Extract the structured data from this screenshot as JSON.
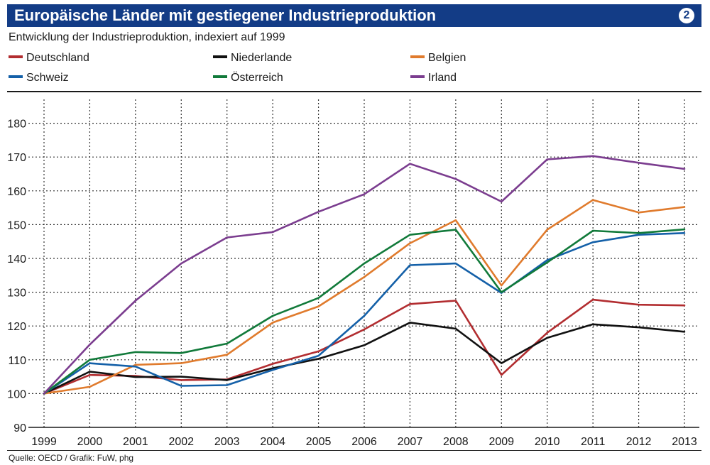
{
  "header": {
    "title": "Europäische Länder mit gestiegener Industrieproduktion",
    "badge": "2"
  },
  "footer": {
    "source": "Quelle: OECD / Grafik: FuW, phg"
  },
  "colors": {
    "title_bar": "#133c86",
    "grid": "#333333"
  },
  "chart_data": {
    "type": "line",
    "title": "Europäische Länder mit gestiegener Industrieproduktion",
    "subtitle": "Entwicklung der Industrieproduktion, indexiert auf 1999",
    "xlabel": "",
    "ylabel": "",
    "x": [
      "1999",
      "2000",
      "2001",
      "2002",
      "2003",
      "2004",
      "2005",
      "2006",
      "2007",
      "2008",
      "2009",
      "2010",
      "2011",
      "2012",
      "2013"
    ],
    "ylim": [
      90,
      180
    ],
    "yticks": [
      90,
      100,
      110,
      120,
      130,
      140,
      150,
      160,
      170,
      180
    ],
    "grid": true,
    "legend_position": "top",
    "series": [
      {
        "name": "Deutschland",
        "color": "#b22d30",
        "values": [
          100,
          105.5,
          105.2,
          104,
          104.2,
          108.8,
          112.5,
          119,
          126.5,
          127.5,
          105.5,
          118,
          127.8,
          126.3,
          126.1
        ]
      },
      {
        "name": "Niederlande",
        "color": "#111111",
        "values": [
          100,
          106.5,
          104.9,
          105,
          104,
          107.5,
          110.3,
          114.3,
          121,
          119.2,
          109,
          116.5,
          120.5,
          119.6,
          118.3
        ]
      },
      {
        "name": "Belgien",
        "color": "#e07b2d",
        "values": [
          100,
          102,
          108.5,
          109,
          111.5,
          121,
          125.8,
          134.5,
          144.5,
          151.3,
          132,
          148.5,
          157.3,
          153.6,
          155.2
        ]
      },
      {
        "name": "Schweiz",
        "color": "#1460a8",
        "values": [
          100,
          109,
          108,
          102.3,
          102.5,
          107,
          111.2,
          123,
          138,
          138.5,
          129.8,
          139.5,
          144.8,
          147,
          147.5
        ]
      },
      {
        "name": "Österreich",
        "color": "#117a3a",
        "values": [
          100,
          110,
          112.3,
          112,
          114.8,
          123,
          128.3,
          138.5,
          147,
          148.5,
          130,
          138.8,
          148.2,
          147.5,
          148.6
        ]
      },
      {
        "name": "Irland",
        "color": "#7b3d8f",
        "values": [
          100,
          114.5,
          127.5,
          138.5,
          146.2,
          147.8,
          153.8,
          159,
          168,
          163.5,
          156.8,
          169.3,
          170.3,
          168.3,
          166.5
        ]
      }
    ]
  }
}
